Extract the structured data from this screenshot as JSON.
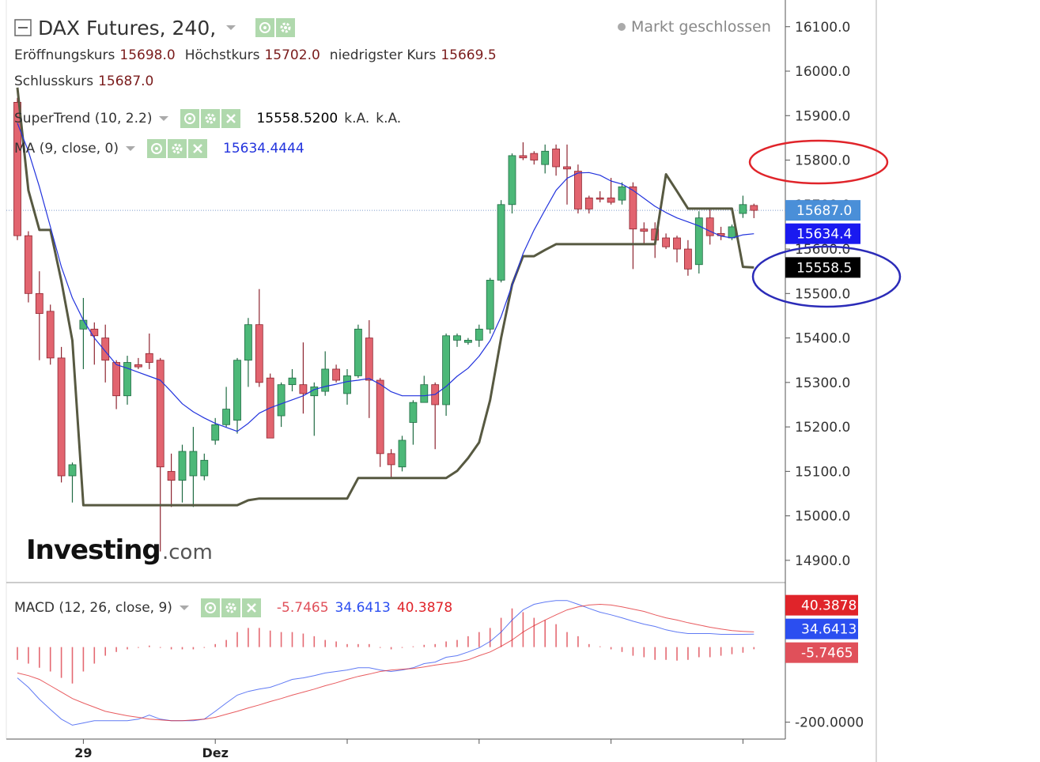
{
  "chart_data": [
    {
      "type": "candlestick",
      "title": "DAX Futures, 240,",
      "status": "Markt geschlossen",
      "categories": [
        null,
        null,
        null,
        null,
        null,
        null,
        "29",
        null,
        null,
        null,
        null,
        null,
        null,
        null,
        null,
        null,
        null,
        null,
        "Dez",
        null,
        null,
        null,
        null,
        null,
        null,
        null,
        null,
        null,
        null,
        null,
        null,
        null,
        null,
        null,
        null,
        null,
        null,
        null,
        null,
        null,
        null,
        null,
        null,
        null,
        null,
        null,
        null,
        null,
        null,
        null,
        null,
        null,
        null,
        null,
        null,
        null,
        null,
        null,
        null,
        null,
        null,
        null,
        null,
        null,
        null,
        null,
        null,
        null
      ],
      "open": [
        15930,
        15630,
        15500,
        15460,
        15355,
        15090,
        15420,
        15420,
        15400,
        15345,
        15270,
        15340,
        15365,
        15350,
        15100,
        15080,
        15090,
        15090,
        15170,
        15205,
        15215,
        15350,
        15430,
        15310,
        15225,
        15295,
        15295,
        15270,
        15280,
        15330,
        15275,
        15315,
        15400,
        15305,
        15140,
        15110,
        15210,
        15255,
        15295,
        15250,
        15395,
        15390,
        15395,
        15420,
        15530,
        15700,
        15810,
        15815,
        15790,
        15825,
        15785,
        15775,
        15715,
        15715,
        15715,
        15710,
        15740,
        15645,
        15645,
        15625,
        15625,
        15600,
        15565,
        15670,
        15635,
        15625,
        15680,
        15698
      ],
      "high": [
        15940,
        15640,
        15550,
        15475,
        15380,
        15120,
        15490,
        15435,
        15430,
        15350,
        15360,
        15355,
        15410,
        15355,
        15140,
        15160,
        15200,
        15140,
        15220,
        15290,
        15355,
        15445,
        15510,
        15320,
        15300,
        15330,
        15390,
        15300,
        15370,
        15340,
        15330,
        15430,
        15440,
        15310,
        15150,
        15180,
        15260,
        15315,
        15300,
        15410,
        15410,
        15400,
        15430,
        15535,
        15710,
        15815,
        15840,
        15820,
        15835,
        15835,
        15835,
        15790,
        15720,
        15730,
        15760,
        15750,
        15750,
        15660,
        15660,
        15635,
        15630,
        15620,
        15685,
        15690,
        15650,
        15655,
        15720,
        15702
      ],
      "low": [
        15620,
        15480,
        15350,
        15340,
        15075,
        15030,
        15330,
        15340,
        15300,
        15240,
        15250,
        15330,
        15330,
        14920,
        15020,
        15030,
        15020,
        15080,
        15160,
        15200,
        15185,
        15290,
        15290,
        15175,
        15200,
        15280,
        15230,
        15180,
        15270,
        15300,
        15250,
        15310,
        15220,
        15110,
        15085,
        15100,
        15160,
        15255,
        15150,
        15225,
        15380,
        15385,
        15380,
        15410,
        15525,
        15680,
        15800,
        15790,
        15770,
        15765,
        15700,
        15680,
        15680,
        15705,
        15700,
        15700,
        15555,
        15610,
        15580,
        15600,
        15570,
        15540,
        15545,
        15610,
        15620,
        15620,
        15670,
        15669.5
      ],
      "close": [
        15630,
        15500,
        15455,
        15355,
        15090,
        15115,
        15440,
        15405,
        15350,
        15270,
        15345,
        15335,
        15345,
        15110,
        15080,
        15145,
        15145,
        15125,
        15205,
        15240,
        15350,
        15430,
        15300,
        15175,
        15295,
        15310,
        15275,
        15290,
        15330,
        15305,
        15315,
        15420,
        15305,
        15140,
        15115,
        15170,
        15255,
        15295,
        15250,
        15405,
        15405,
        15395,
        15420,
        15530,
        15700,
        15810,
        15805,
        15800,
        15820,
        15785,
        15780,
        15690,
        15690,
        15712,
        15705,
        15740,
        15645,
        15640,
        15620,
        15605,
        15600,
        15555,
        15670,
        15630,
        15630,
        15650,
        15700,
        15687
      ],
      "up_color": "#4cb878",
      "down_color": "#e2646f",
      "ohlc_legend": [
        {
          "name": "Eröffnungskurs",
          "value": 15698,
          "label": "15698.0"
        },
        {
          "name": "Höchstkurs",
          "value": 15702,
          "label": "15702.0"
        },
        {
          "name": "niedrigster Kurs",
          "value": 15669.5,
          "label": "15669.5"
        },
        {
          "name": "Schlusskurs",
          "value": 15687,
          "label": "15687.0"
        }
      ],
      "last_tag": {
        "value": 15687,
        "label": "15687.0",
        "color": "#4a8fd8"
      },
      "series": [
        {
          "name": "SuperTrend (10, 2.2)",
          "color": "#575941",
          "values": [
            15963,
            15732,
            15643,
            15643,
            15528,
            15394,
            15024,
            15024,
            15024,
            15024,
            15024,
            15024,
            15024,
            15024,
            15024,
            15024,
            15024,
            15024,
            15024,
            15024,
            15024,
            15035,
            15039,
            15039,
            15039,
            15039,
            15039,
            15039,
            15039,
            15039,
            15039,
            15085,
            15085,
            15085,
            15085,
            15085,
            15085,
            15085,
            15085,
            15085,
            15101,
            15130,
            15165,
            15260,
            15400,
            15520,
            15584,
            15584,
            15598,
            15611,
            15611,
            15611,
            15611,
            15611,
            15611,
            15611,
            15611,
            15611,
            15611,
            15768,
            15730,
            15691,
            15691,
            15691,
            15691,
            15691,
            15560,
            15558.52
          ],
          "legend_value": {
            "value": 15558.52,
            "label": "15558.5200"
          },
          "legend_extra": [
            "k.A.",
            "k.A."
          ],
          "tag": {
            "value": 15558.52,
            "label": "15558.5",
            "color": "#000000"
          }
        },
        {
          "name": "MA (9, close, 0)",
          "color": "#2233dd",
          "values": [
            15883,
            15820,
            15740,
            15650,
            15560,
            15490,
            15440,
            15400,
            15370,
            15340,
            15332,
            15323,
            15314,
            15305,
            15279,
            15252,
            15234,
            15220,
            15208,
            15199,
            15190,
            15208,
            15231,
            15243,
            15252,
            15261,
            15270,
            15284,
            15291,
            15296,
            15302,
            15305,
            15309,
            15296,
            15279,
            15270,
            15270,
            15270,
            15273,
            15291,
            15314,
            15332,
            15359,
            15394,
            15448,
            15519,
            15590,
            15643,
            15688,
            15732,
            15759,
            15771,
            15772,
            15766,
            15753,
            15746,
            15732,
            15714,
            15696,
            15682,
            15670,
            15661,
            15652,
            15640,
            15629,
            15625,
            15632,
            15634.4444
          ],
          "tag": {
            "value": 15634.4444,
            "label": "15634.4",
            "color": "#1a1af0"
          }
        }
      ],
      "ylim": [
        14850,
        16160
      ],
      "yticks": [
        {
          "value": 16100,
          "label": "16100.0"
        },
        {
          "value": 16000,
          "label": "16000.0"
        },
        {
          "value": 15900,
          "label": "15900.0"
        },
        {
          "value": 15800,
          "label": "15800.0"
        },
        {
          "value": 15700,
          "label": "15700.0"
        },
        {
          "value": 15600,
          "label": "15600.0"
        },
        {
          "value": 15500,
          "label": "15500.0"
        },
        {
          "value": 15400,
          "label": "15400.0"
        },
        {
          "value": 15300,
          "label": "15300.0"
        },
        {
          "value": 15200,
          "label": "15200.0"
        },
        {
          "value": 15100,
          "label": "15100.0"
        },
        {
          "value": 15000,
          "label": "15000.0"
        },
        {
          "value": 14900,
          "label": "14900.0"
        }
      ],
      "watermark": {
        "brand": "Investing",
        "domain": ".com"
      }
    },
    {
      "type": "macd",
      "title": "MACD (12, 26, close, 9)",
      "histogram": {
        "color": "#e0505a",
        "values": [
          -34,
          -44,
          -55,
          -65,
          -82,
          -97,
          -65,
          -44,
          -23,
          -13,
          -6,
          -2,
          4,
          -2,
          -6,
          -6,
          -6,
          -2,
          8,
          19,
          40,
          51,
          51,
          44,
          40,
          40,
          36,
          29,
          19,
          15,
          8,
          8,
          8,
          -2,
          -6,
          -2,
          2,
          6,
          8,
          15,
          19,
          29,
          40,
          51,
          78,
          103,
          93,
          78,
          72,
          61,
          40,
          29,
          8,
          2,
          -6,
          -13,
          -23,
          -27,
          -34,
          -34,
          -36,
          -34,
          -27,
          -27,
          -23,
          -19,
          -15,
          -5.7465
        ]
      },
      "series": [
        {
          "color": "#2b4ef0",
          "values": [
            -82,
            -107,
            -139,
            -166,
            -192,
            -208,
            -202,
            -196,
            -196,
            -196,
            -196,
            -192,
            -181,
            -192,
            -196,
            -196,
            -196,
            -192,
            -171,
            -149,
            -128,
            -118,
            -112,
            -107,
            -97,
            -86,
            -82,
            -76,
            -69,
            -65,
            -61,
            -55,
            -55,
            -61,
            -65,
            -61,
            -55,
            -44,
            -40,
            -27,
            -23,
            -13,
            -2,
            15,
            40,
            72,
            99,
            114,
            120,
            124,
            124,
            114,
            103,
            93,
            86,
            78,
            69,
            61,
            55,
            46,
            40,
            36,
            36,
            36,
            34,
            34,
            34,
            34.6413
          ]
        },
        {
          "color": "#e0242a",
          "values": [
            -69,
            -76,
            -86,
            -103,
            -120,
            -137,
            -149,
            -160,
            -171,
            -177,
            -183,
            -187,
            -192,
            -194,
            -196,
            -196,
            -194,
            -192,
            -187,
            -179,
            -171,
            -162,
            -154,
            -145,
            -137,
            -128,
            -120,
            -112,
            -103,
            -95,
            -86,
            -78,
            -72,
            -65,
            -61,
            -59,
            -57,
            -53,
            -48,
            -44,
            -40,
            -34,
            -23,
            -13,
            2,
            19,
            40,
            57,
            72,
            86,
            99,
            107,
            112,
            114,
            112,
            107,
            101,
            95,
            86,
            78,
            72,
            65,
            59,
            53,
            48,
            44,
            42,
            40.3878
          ]
        }
      ],
      "ylim": [
        -245,
        155
      ],
      "yticks": [
        {
          "value": -200,
          "label": "-200.0000"
        }
      ]
    }
  ]
}
